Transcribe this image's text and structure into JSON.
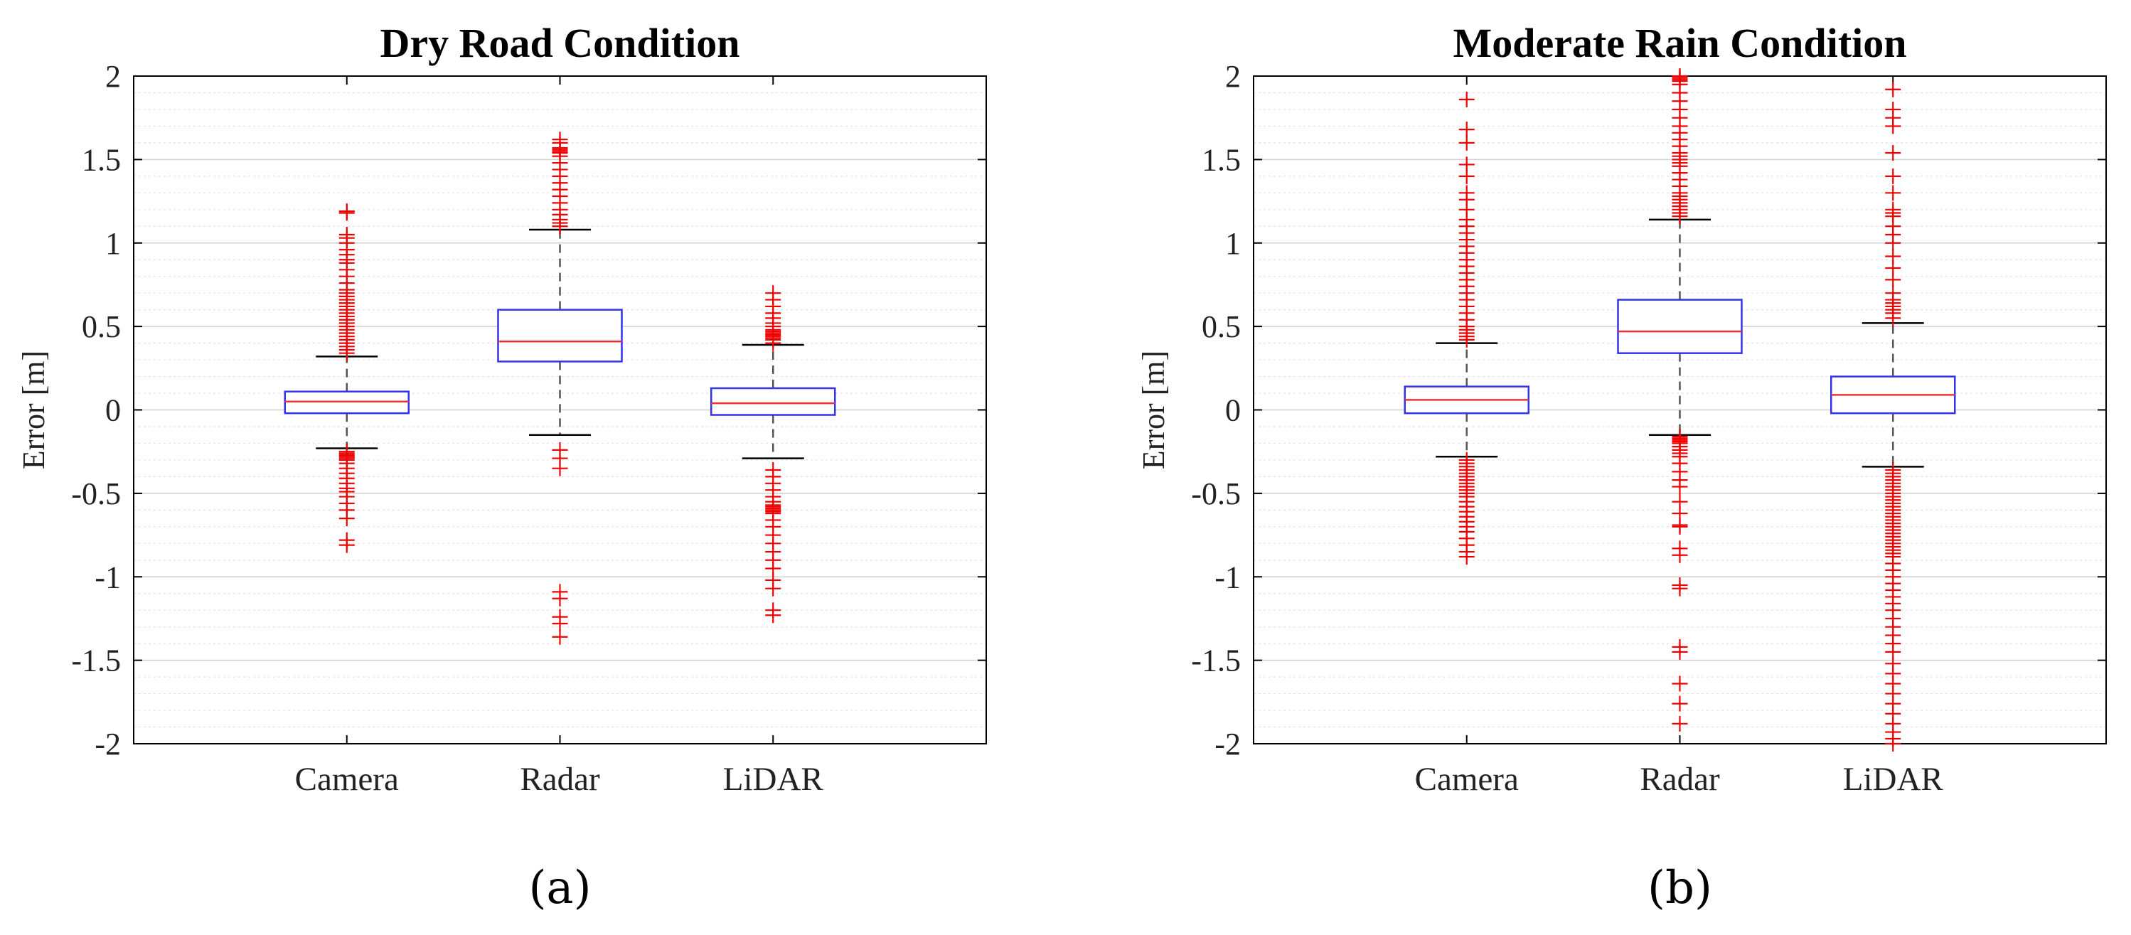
{
  "panel_labels": [
    "(a)",
    "(b)"
  ],
  "chart_data": [
    {
      "type": "box",
      "title": "Dry Road Condition",
      "xlabel": "",
      "ylabel": "Error [m]",
      "ylim": [
        -2,
        2
      ],
      "yticks": [
        2,
        1.5,
        1,
        0.5,
        0,
        -0.5,
        -1,
        -1.5,
        -2
      ],
      "ytick_labels": [
        "2",
        "1.5",
        "1",
        "0.5",
        "0",
        "-0.5",
        "-1",
        "-1.5",
        "-2"
      ],
      "categories": [
        "Camera",
        "Radar",
        "LiDAR"
      ],
      "grid": true,
      "colors": {
        "box": "#3333ee",
        "median": "#ee3333",
        "whisker": "#555555",
        "outlier": "#ee0000",
        "grid": "#cfcfcf"
      },
      "boxes": [
        {
          "q1": -0.02,
          "median": 0.05,
          "q3": 0.11,
          "whisker_low": -0.23,
          "whisker_high": 0.32,
          "outliers": [
            0.34,
            0.36,
            0.38,
            0.4,
            0.42,
            0.44,
            0.46,
            0.48,
            0.5,
            0.52,
            0.54,
            0.56,
            0.58,
            0.6,
            0.62,
            0.64,
            0.66,
            0.68,
            0.7,
            0.72,
            0.76,
            0.8,
            0.84,
            0.88,
            0.9,
            0.93,
            0.96,
            1.0,
            1.03,
            1.05,
            1.18,
            1.19,
            -0.25,
            -0.26,
            -0.27,
            -0.28,
            -0.29,
            -0.3,
            -0.32,
            -0.35,
            -0.38,
            -0.41,
            -0.44,
            -0.47,
            -0.49,
            -0.52,
            -0.56,
            -0.6,
            -0.65,
            -0.78,
            -0.81
          ]
        },
        {
          "q1": 0.29,
          "median": 0.41,
          "q3": 0.6,
          "whisker_low": -0.15,
          "whisker_high": 1.08,
          "outliers": [
            1.1,
            1.12,
            1.14,
            1.17,
            1.2,
            1.24,
            1.28,
            1.32,
            1.36,
            1.4,
            1.44,
            1.48,
            1.52,
            1.54,
            1.55,
            1.56,
            1.57,
            1.6,
            1.62,
            -0.24,
            -0.29,
            -0.35,
            -1.09,
            -1.13,
            -1.24,
            -1.28,
            -1.36
          ]
        },
        {
          "q1": -0.03,
          "median": 0.04,
          "q3": 0.13,
          "whisker_low": -0.29,
          "whisker_high": 0.39,
          "outliers": [
            0.4,
            0.42,
            0.43,
            0.44,
            0.45,
            0.46,
            0.47,
            0.48,
            0.5,
            0.52,
            0.55,
            0.58,
            0.62,
            0.66,
            0.7,
            -0.36,
            -0.4,
            -0.44,
            -0.48,
            -0.52,
            -0.55,
            -0.57,
            -0.58,
            -0.59,
            -0.6,
            -0.61,
            -0.62,
            -0.66,
            -0.7,
            -0.75,
            -0.8,
            -0.85,
            -0.9,
            -0.95,
            -1.02,
            -1.07,
            -1.2,
            -1.23
          ]
        }
      ]
    },
    {
      "type": "box",
      "title": "Moderate Rain Condition",
      "xlabel": "",
      "ylabel": "Error [m]",
      "ylim": [
        -2,
        2
      ],
      "yticks": [
        2,
        1.5,
        1,
        0.5,
        0,
        -0.5,
        -1,
        -1.5,
        -2
      ],
      "ytick_labels": [
        "2",
        "1.5",
        "1",
        "0.5",
        "0",
        "-0.5",
        "-1",
        "-1.5",
        "-2"
      ],
      "categories": [
        "Camera",
        "Radar",
        "LiDAR"
      ],
      "grid": true,
      "colors": {
        "box": "#3333ee",
        "median": "#ee3333",
        "whisker": "#555555",
        "outlier": "#ee0000",
        "grid": "#cfcfcf"
      },
      "boxes": [
        {
          "q1": -0.02,
          "median": 0.06,
          "q3": 0.14,
          "whisker_low": -0.28,
          "whisker_high": 0.4,
          "outliers": [
            0.42,
            0.44,
            0.46,
            0.48,
            0.5,
            0.54,
            0.58,
            0.62,
            0.66,
            0.7,
            0.74,
            0.78,
            0.82,
            0.86,
            0.9,
            0.94,
            0.98,
            1.02,
            1.06,
            1.1,
            1.14,
            1.2,
            1.26,
            1.3,
            1.4,
            1.47,
            1.6,
            1.68,
            1.86,
            -0.3,
            -0.32,
            -0.34,
            -0.36,
            -0.38,
            -0.4,
            -0.42,
            -0.44,
            -0.46,
            -0.48,
            -0.5,
            -0.52,
            -0.55,
            -0.58,
            -0.61,
            -0.64,
            -0.67,
            -0.7,
            -0.73,
            -0.77,
            -0.81,
            -0.85,
            -0.88
          ]
        },
        {
          "q1": 0.34,
          "median": 0.47,
          "q3": 0.66,
          "whisker_low": -0.15,
          "whisker_high": 1.14,
          "outliers": [
            1.16,
            1.18,
            1.2,
            1.22,
            1.24,
            1.26,
            1.28,
            1.3,
            1.34,
            1.38,
            1.42,
            1.46,
            1.48,
            1.5,
            1.52,
            1.54,
            1.58,
            1.62,
            1.66,
            1.7,
            1.75,
            1.8,
            1.85,
            1.9,
            1.95,
            1.97,
            1.98,
            1.99,
            2.0,
            -0.16,
            -0.17,
            -0.18,
            -0.19,
            -0.2,
            -0.22,
            -0.24,
            -0.26,
            -0.28,
            -0.32,
            -0.37,
            -0.42,
            -0.46,
            -0.55,
            -0.62,
            -0.69,
            -0.7,
            -0.83,
            -0.87,
            -1.05,
            -1.07,
            -1.42,
            -1.45,
            -1.64,
            -1.76,
            -1.88
          ]
        },
        {
          "q1": -0.02,
          "median": 0.09,
          "q3": 0.2,
          "whisker_low": -0.34,
          "whisker_high": 0.52,
          "outliers": [
            0.55,
            0.58,
            0.6,
            0.62,
            0.64,
            0.66,
            0.7,
            0.78,
            0.85,
            0.92,
            1.0,
            1.05,
            1.1,
            1.16,
            1.18,
            1.2,
            1.3,
            1.4,
            1.54,
            1.7,
            1.75,
            1.8,
            1.92,
            -0.36,
            -0.38,
            -0.4,
            -0.42,
            -0.44,
            -0.46,
            -0.48,
            -0.5,
            -0.52,
            -0.54,
            -0.56,
            -0.58,
            -0.6,
            -0.62,
            -0.64,
            -0.66,
            -0.68,
            -0.7,
            -0.72,
            -0.74,
            -0.76,
            -0.78,
            -0.8,
            -0.82,
            -0.84,
            -0.86,
            -0.88,
            -0.92,
            -0.96,
            -1.0,
            -1.04,
            -1.08,
            -1.12,
            -1.16,
            -1.2,
            -1.25,
            -1.3,
            -1.35,
            -1.4,
            -1.45,
            -1.52,
            -1.58,
            -1.64,
            -1.7,
            -1.76,
            -1.82,
            -1.88,
            -1.93,
            -1.97,
            -2.0
          ]
        }
      ]
    }
  ]
}
